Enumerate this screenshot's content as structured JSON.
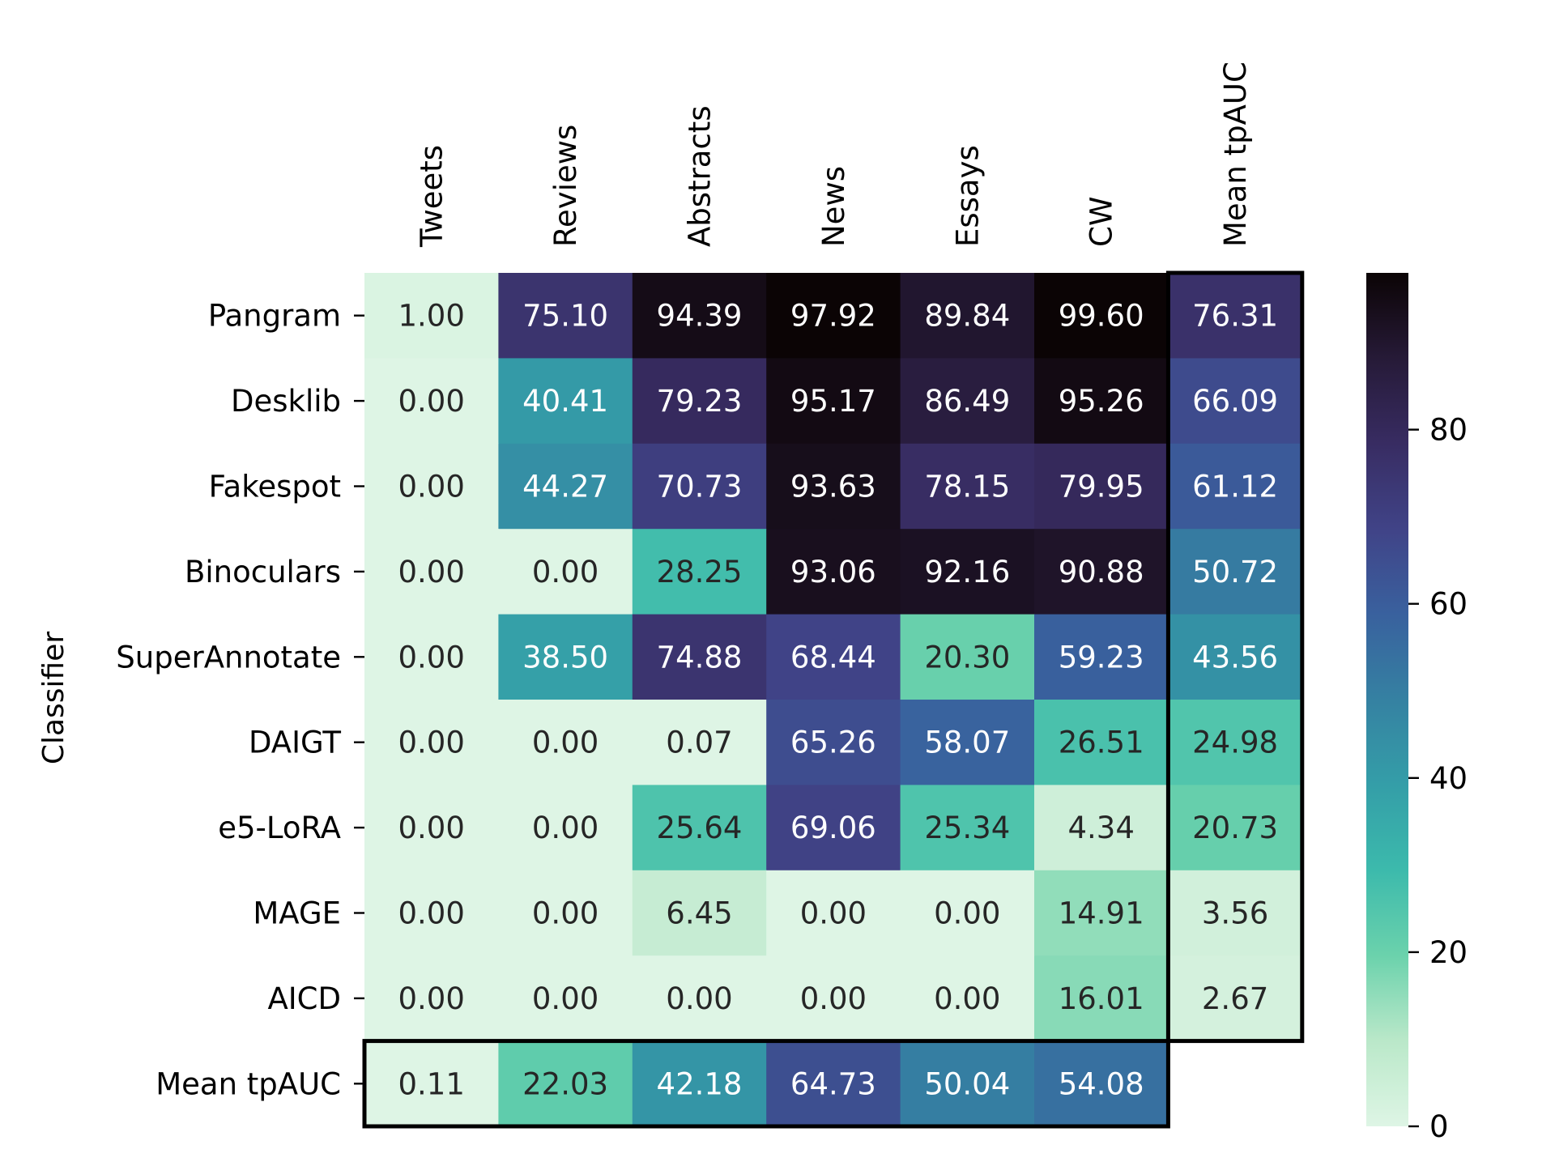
{
  "chart_data": {
    "type": "heatmap",
    "ylabel": "Classifier",
    "columns": [
      "Tweets",
      "Reviews",
      "Abstracts",
      "News",
      "Essays",
      "CW",
      "Mean tpAUC"
    ],
    "rows": [
      "Pangram",
      "Desklib",
      "Fakespot",
      "Binoculars",
      "SuperAnnotate",
      "DAIGT",
      "e5-LoRA",
      "MAGE",
      "AICD",
      "Mean tpAUC"
    ],
    "values": [
      [
        "1.00",
        "75.10",
        "94.39",
        "97.92",
        "89.84",
        "99.60",
        "76.31"
      ],
      [
        "0.00",
        "40.41",
        "79.23",
        "95.17",
        "86.49",
        "95.26",
        "66.09"
      ],
      [
        "0.00",
        "44.27",
        "70.73",
        "93.63",
        "78.15",
        "79.95",
        "61.12"
      ],
      [
        "0.00",
        "0.00",
        "28.25",
        "93.06",
        "92.16",
        "90.88",
        "50.72"
      ],
      [
        "0.00",
        "38.50",
        "74.88",
        "68.44",
        "20.30",
        "59.23",
        "43.56"
      ],
      [
        "0.00",
        "0.00",
        "0.07",
        "65.26",
        "58.07",
        "26.51",
        "24.98"
      ],
      [
        "0.00",
        "0.00",
        "25.64",
        "69.06",
        "25.34",
        "4.34",
        "20.73"
      ],
      [
        "0.00",
        "0.00",
        "6.45",
        "0.00",
        "0.00",
        "14.91",
        "3.56"
      ],
      [
        "0.00",
        "0.00",
        "0.00",
        "0.00",
        "0.00",
        "16.01",
        "2.67"
      ],
      [
        "0.11",
        "22.03",
        "42.18",
        "64.73",
        "50.04",
        "54.08",
        null
      ]
    ],
    "colorbar": {
      "min": 0,
      "max": 98,
      "ticks": [
        "0",
        "20",
        "40",
        "60",
        "80"
      ],
      "colormap": "mako_r"
    },
    "highlight_boxes": [
      "last-column",
      "last-row"
    ]
  }
}
